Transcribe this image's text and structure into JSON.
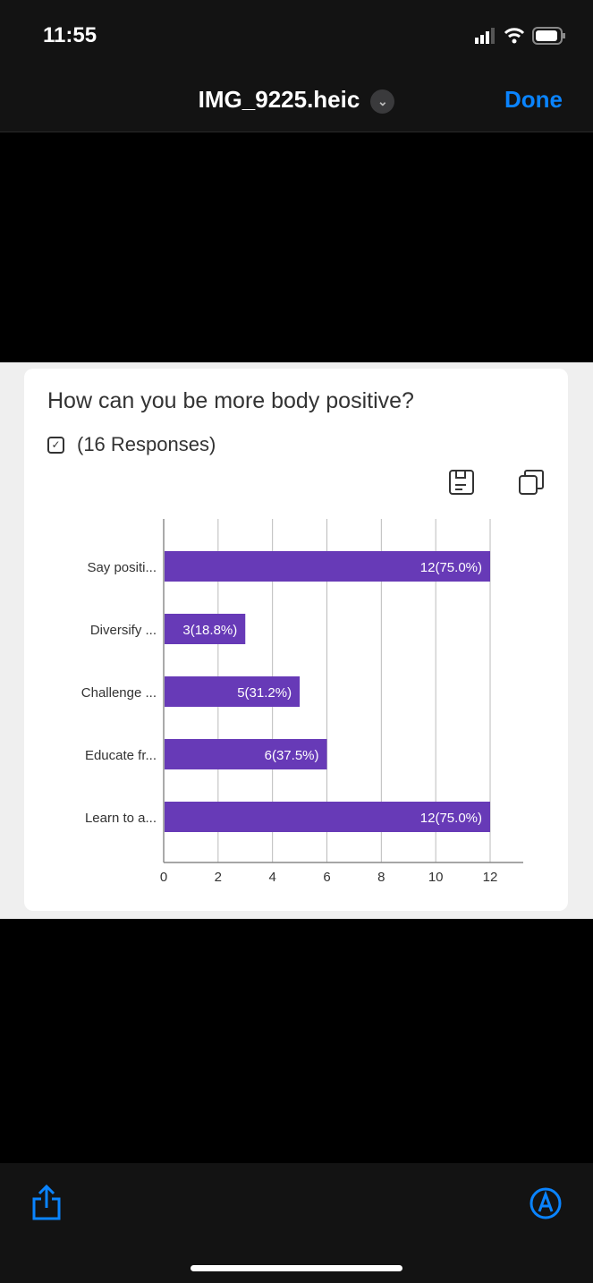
{
  "status_bar": {
    "time": "11:55"
  },
  "nav": {
    "title": "IMG_9225.heic",
    "done": "Done"
  },
  "card": {
    "question": "How can you be more body positive?",
    "responses": "(16 Responses)"
  },
  "colors": {
    "bar": "#673ab7",
    "accent": "#0a84ff"
  },
  "chart_data": {
    "type": "bar",
    "orientation": "horizontal",
    "categories": [
      "Say positi...",
      "Diversify ...",
      "Challenge ...",
      "Educate fr...",
      "Learn to a..."
    ],
    "values": [
      12,
      3,
      5,
      6,
      12
    ],
    "labels": [
      "12(75.0%)",
      "3(18.8%)",
      "5(31.2%)",
      "6(37.5%)",
      "12(75.0%)"
    ],
    "xlim": [
      0,
      12
    ],
    "xticks": [
      "0",
      "2",
      "4",
      "6",
      "8",
      "10",
      "12"
    ],
    "grid": true
  }
}
